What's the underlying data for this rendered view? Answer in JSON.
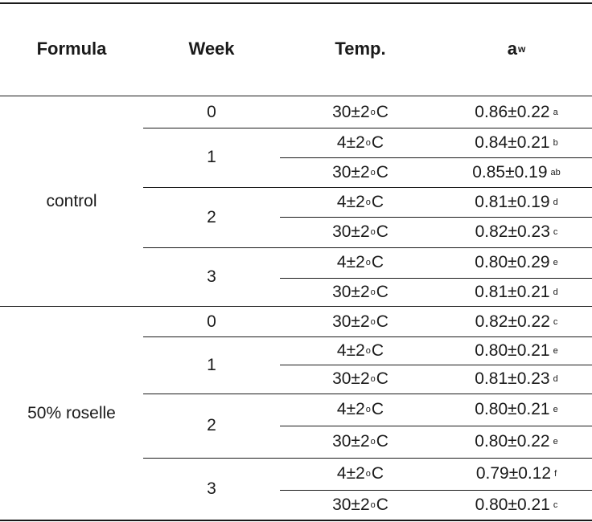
{
  "header": {
    "formula": "Formula",
    "week": "Week",
    "temp": "Temp.",
    "aw_main": "a",
    "aw_sub": "w"
  },
  "groups": [
    {
      "formula": "control",
      "weeks": [
        "0",
        "1",
        "2",
        "3"
      ],
      "rows": [
        {
          "t_num": "30±2",
          "t_unit": "C",
          "val": "0.86±0.22",
          "letter": "a"
        },
        {
          "t_num": "4±2",
          "t_unit": "C",
          "val": "0.84±0.21",
          "letter": "b"
        },
        {
          "t_num": "30±2",
          "t_unit": "C",
          "val": "0.85±0.19",
          "letter": "ab"
        },
        {
          "t_num": "4±2",
          "t_unit": "C",
          "val": "0.81±0.19",
          "letter": "d"
        },
        {
          "t_num": "30±2",
          "t_unit": "C",
          "val": "0.82±0.23",
          "letter": "c"
        },
        {
          "t_num": "4±2",
          "t_unit": "C",
          "val": "0.80±0.29",
          "letter": "e"
        },
        {
          "t_num": "30±2",
          "t_unit": "C",
          "val": "0.81±0.21",
          "letter": "d"
        }
      ]
    },
    {
      "formula": "50% roselle",
      "weeks": [
        "0",
        "1",
        "2",
        "3"
      ],
      "rows": [
        {
          "t_num": "30±2",
          "t_unit": "C",
          "val": "0.82±0.22",
          "letter": "c"
        },
        {
          "t_num": "4±2",
          "t_unit": "C",
          "val": "0.80±0.21",
          "letter": "e"
        },
        {
          "t_num": "30±2",
          "t_unit": "C",
          "val": "0.81±0.23",
          "letter": "d"
        },
        {
          "t_num": "4±2",
          "t_unit": "C",
          "val": "0.80±0.21",
          "letter": "e"
        },
        {
          "t_num": "30±2",
          "t_unit": "C",
          "val": "0.80±0.22",
          "letter": "e"
        },
        {
          "t_num": "4±2",
          "t_unit": "C",
          "val": "0.79±0.12",
          "letter": "f"
        },
        {
          "t_num": "30±2",
          "t_unit": "C",
          "val": "0.80±0.21",
          "letter": "c"
        }
      ]
    }
  ]
}
